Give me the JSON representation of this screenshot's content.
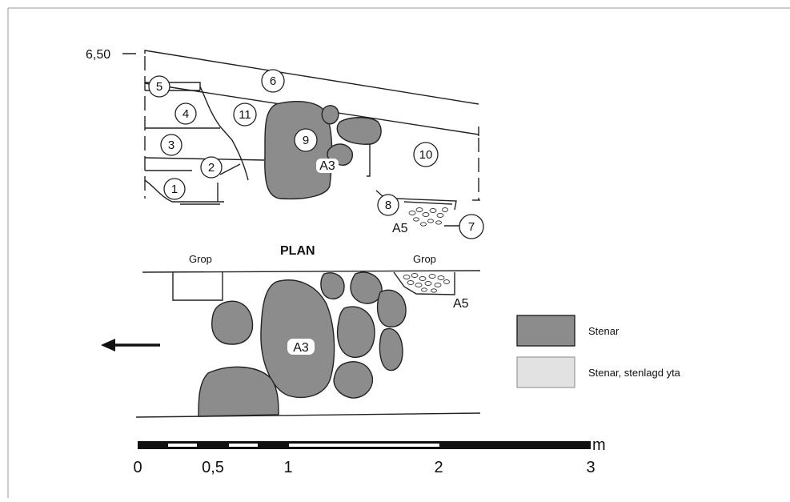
{
  "elevation_label": "6,50",
  "section_numbers": [
    "1",
    "2",
    "3",
    "4",
    "5",
    "6",
    "7",
    "8",
    "9",
    "10",
    "11"
  ],
  "feature_labels": {
    "a3_top": "A3",
    "a5_top": "A5",
    "a3_plan": "A3",
    "a5_plan": "A5"
  },
  "plan_title": "PLAN",
  "grop_left": "Grop",
  "grop_right": "Grop",
  "legend": {
    "stones_label": "Stenar",
    "stones_color": "#8c8c8c",
    "paved_label": "Stenar, stenlagd yta",
    "paved_color": "#e2e2e2"
  },
  "scale_bar": {
    "unit": "m",
    "ticks": [
      "0",
      "0,5",
      "1",
      "2",
      "3"
    ]
  },
  "direction_arrow_icon": "arrow-left-icon"
}
